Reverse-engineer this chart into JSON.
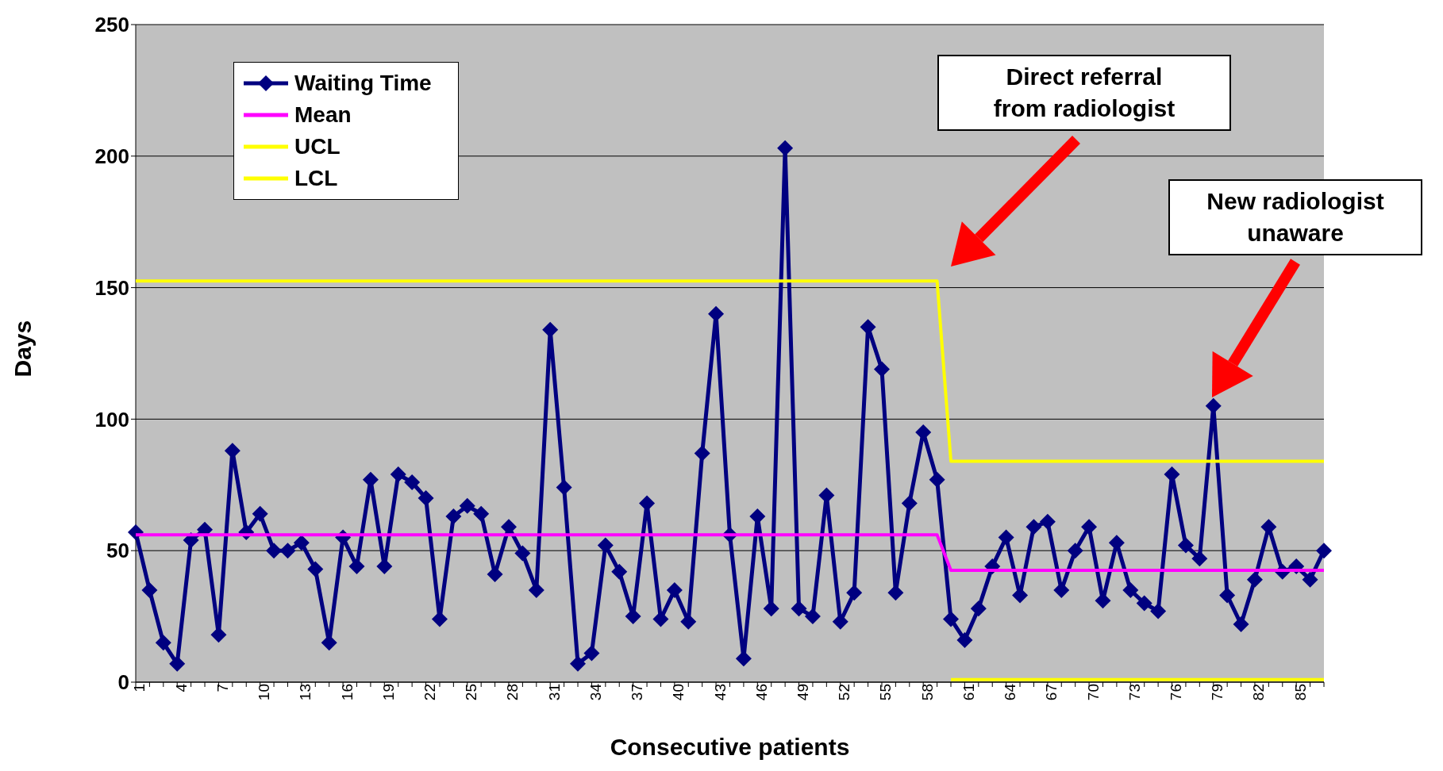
{
  "chart_data": {
    "type": "line",
    "xlabel": "Consecutive patients",
    "ylabel": "Days",
    "categories": [
      "1",
      null,
      null,
      "4",
      null,
      null,
      "7",
      null,
      null,
      "10",
      null,
      null,
      "13",
      null,
      null,
      "16",
      null,
      null,
      "19",
      null,
      null,
      "22",
      null,
      null,
      "25",
      null,
      null,
      "28",
      null,
      null,
      "31",
      null,
      null,
      "34",
      null,
      null,
      "37",
      null,
      null,
      "40",
      null,
      null,
      "43",
      null,
      null,
      "46",
      null,
      null,
      "49",
      null,
      null,
      "52",
      null,
      null,
      "55",
      null,
      null,
      "58",
      null,
      null,
      "61",
      null,
      null,
      "64",
      null,
      null,
      "67",
      null,
      null,
      "70",
      null,
      null,
      "73",
      null,
      null,
      "76",
      null,
      null,
      "79",
      null,
      null,
      "82",
      null,
      null,
      "85",
      null,
      null
    ],
    "series": [
      {
        "name": "Waiting Time",
        "color": "#000080",
        "marker": "diamond",
        "values": [
          57,
          35,
          15,
          7,
          54,
          58,
          18,
          88,
          57,
          64,
          50,
          50,
          53,
          43,
          15,
          55,
          44,
          77,
          44,
          79,
          76,
          70,
          24,
          63,
          67,
          64,
          41,
          59,
          49,
          35,
          134,
          74,
          7,
          11,
          52,
          42,
          25,
          68,
          24,
          35,
          23,
          87,
          140,
          56,
          9,
          63,
          28,
          203,
          28,
          25,
          71,
          23,
          34,
          135,
          119,
          34,
          68,
          95,
          77,
          24,
          16,
          28,
          44,
          55,
          33,
          59,
          61,
          35,
          50,
          59,
          31,
          53,
          35,
          30,
          27,
          79,
          52,
          47,
          105,
          33,
          22,
          39,
          59,
          42,
          44,
          39,
          50
        ]
      },
      {
        "name": "Mean",
        "color": "#ff00ff",
        "marker": "none",
        "values": [
          56,
          56,
          56,
          56,
          56,
          56,
          56,
          56,
          56,
          56,
          56,
          56,
          56,
          56,
          56,
          56,
          56,
          56,
          56,
          56,
          56,
          56,
          56,
          56,
          56,
          56,
          56,
          56,
          56,
          56,
          56,
          56,
          56,
          56,
          56,
          56,
          56,
          56,
          56,
          56,
          56,
          56,
          56,
          56,
          56,
          56,
          56,
          56,
          56,
          56,
          56,
          56,
          56,
          56,
          56,
          56,
          56,
          56,
          56,
          42.5,
          42.5,
          42.5,
          42.5,
          42.5,
          42.5,
          42.5,
          42.5,
          42.5,
          42.5,
          42.5,
          42.5,
          42.5,
          42.5,
          42.5,
          42.5,
          42.5,
          42.5,
          42.5,
          42.5,
          42.5,
          42.5,
          42.5,
          42.5,
          42.5,
          42.5,
          42.5,
          42.5
        ]
      },
      {
        "name": "UCL",
        "color": "#ffff00",
        "marker": "none",
        "values": [
          152.5,
          152.5,
          152.5,
          152.5,
          152.5,
          152.5,
          152.5,
          152.5,
          152.5,
          152.5,
          152.5,
          152.5,
          152.5,
          152.5,
          152.5,
          152.5,
          152.5,
          152.5,
          152.5,
          152.5,
          152.5,
          152.5,
          152.5,
          152.5,
          152.5,
          152.5,
          152.5,
          152.5,
          152.5,
          152.5,
          152.5,
          152.5,
          152.5,
          152.5,
          152.5,
          152.5,
          152.5,
          152.5,
          152.5,
          152.5,
          152.5,
          152.5,
          152.5,
          152.5,
          152.5,
          152.5,
          152.5,
          152.5,
          152.5,
          152.5,
          152.5,
          152.5,
          152.5,
          152.5,
          152.5,
          152.5,
          152.5,
          152.5,
          152.5,
          84,
          84,
          84,
          84,
          84,
          84,
          84,
          84,
          84,
          84,
          84,
          84,
          84,
          84,
          84,
          84,
          84,
          84,
          84,
          84,
          84,
          84,
          84,
          84,
          84,
          84,
          84,
          84
        ]
      },
      {
        "name": "LCL",
        "color": "#ffff00",
        "marker": "none",
        "values": [
          null,
          null,
          null,
          null,
          null,
          null,
          null,
          null,
          null,
          null,
          null,
          null,
          null,
          null,
          null,
          null,
          null,
          null,
          null,
          null,
          null,
          null,
          null,
          null,
          null,
          null,
          null,
          null,
          null,
          null,
          null,
          null,
          null,
          null,
          null,
          null,
          null,
          null,
          null,
          null,
          null,
          null,
          null,
          null,
          null,
          null,
          null,
          null,
          null,
          null,
          null,
          null,
          null,
          null,
          null,
          null,
          null,
          null,
          null,
          1,
          1,
          1,
          1,
          1,
          1,
          1,
          1,
          1,
          1,
          1,
          1,
          1,
          1,
          1,
          1,
          1,
          1,
          1,
          1,
          1,
          1,
          1,
          1,
          1,
          1,
          1,
          1
        ]
      }
    ],
    "ylim": [
      0,
      250
    ],
    "yticks": [
      0,
      50,
      100,
      150,
      200,
      250
    ],
    "grid": "y",
    "legend": "top left",
    "line_style": "solid",
    "annotations": [
      "Direct referral from radiologist",
      "New radiologist unaware"
    ]
  }
}
